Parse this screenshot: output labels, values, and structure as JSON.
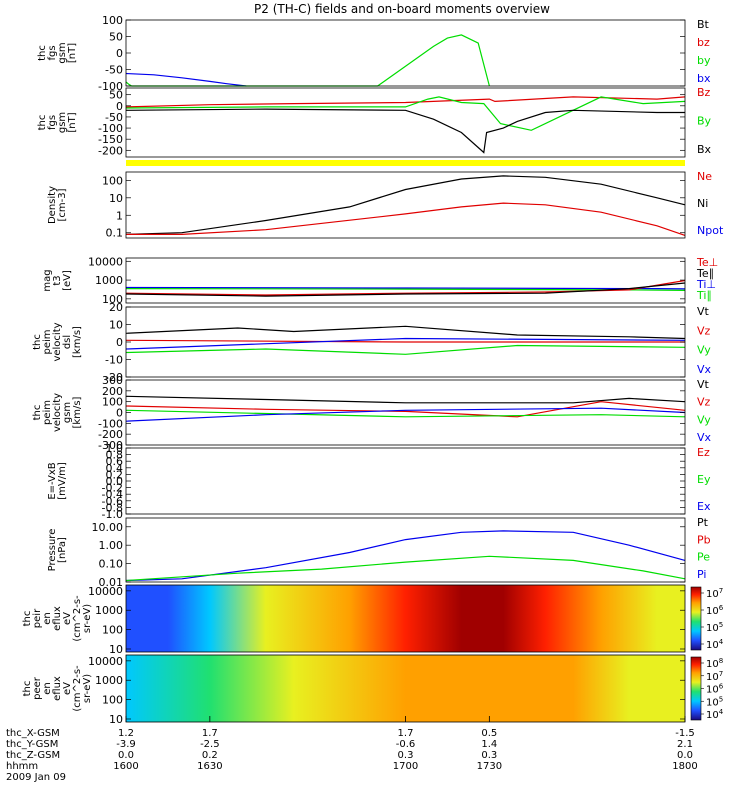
{
  "title": "P2 (TH-C) fields and on-board moments overview",
  "colors": {
    "black": "#000000",
    "red": "#e00000",
    "green": "#00dd00",
    "blue": "#0000ee",
    "yellow": "#ffff00"
  },
  "chart_data": [
    {
      "id": "p1",
      "type": "line",
      "ylabel": [
        "thc",
        "fgs",
        "gsm",
        "[nT]"
      ],
      "ylim": [
        -100,
        100
      ],
      "yticks": [
        100,
        50,
        0,
        -50,
        -100
      ],
      "legend": [
        {
          "name": "Bt",
          "color": "#000000"
        },
        {
          "name": "bz",
          "color": "#e00000"
        },
        {
          "name": "by",
          "color": "#00dd00"
        },
        {
          "name": "bx",
          "color": "#0000ee"
        }
      ],
      "series": [
        {
          "name": "bx",
          "color": "#0000ee",
          "x": [
            1600,
            1610,
            1620,
            1630,
            1636,
            1643
          ],
          "y": [
            -62,
            -66,
            -75,
            -86,
            -93,
            -100
          ]
        },
        {
          "name": "by",
          "color": "#00dd00",
          "x": [
            1600,
            1601,
            1602,
            1690,
            1700,
            1710,
            1715,
            1720,
            1726,
            1730
          ],
          "y": [
            -88,
            -95,
            -100,
            -100,
            -40,
            20,
            45,
            55,
            30,
            -100
          ]
        }
      ]
    },
    {
      "id": "p2",
      "type": "line",
      "ylabel": [
        "thc",
        "fgs",
        "gsm",
        "[nT]"
      ],
      "ylim": [
        -230,
        80
      ],
      "yticks": [
        50,
        0,
        -50,
        -100,
        -150,
        -200
      ],
      "legend": [
        {
          "name": "Bz",
          "color": "#e00000"
        },
        {
          "name": "By",
          "color": "#00dd00"
        },
        {
          "name": "Bx",
          "color": "#000000"
        }
      ],
      "series": [
        {
          "name": "Bz",
          "color": "#e00000",
          "x": [
            1600,
            1630,
            1660,
            1700,
            1730,
            1732,
            1760,
            1790,
            1800
          ],
          "y": [
            -5,
            5,
            10,
            15,
            30,
            20,
            40,
            30,
            40
          ]
        },
        {
          "name": "By",
          "color": "#00dd00",
          "x": [
            1600,
            1650,
            1700,
            1708,
            1712,
            1720,
            1728,
            1734,
            1745,
            1770,
            1785,
            1800
          ],
          "y": [
            -10,
            -5,
            -5,
            30,
            40,
            15,
            10,
            -80,
            -110,
            40,
            10,
            20
          ]
        },
        {
          "name": "Bx",
          "color": "#000000",
          "x": [
            1600,
            1650,
            1700,
            1710,
            1720,
            1728,
            1729,
            1735,
            1740,
            1750,
            1760,
            1790,
            1800
          ],
          "y": [
            -20,
            -15,
            -20,
            -60,
            -120,
            -210,
            -120,
            -100,
            -70,
            -30,
            -20,
            -30,
            -30
          ]
        }
      ]
    },
    {
      "id": "p3",
      "type": "line",
      "ylabel": [
        "Density",
        "[cm-3]"
      ],
      "yscale": "log",
      "ylim": [
        0.05,
        300
      ],
      "yticks": [
        "100",
        "10",
        "1",
        "0.1"
      ],
      "legend": [
        {
          "name": "Ne",
          "color": "#e00000"
        },
        {
          "name": "Ni",
          "color": "#000000"
        },
        {
          "name": "Npot",
          "color": "#0000ee"
        }
      ],
      "series": [
        {
          "name": "Ni",
          "color": "#000000",
          "x": [
            1600,
            1620,
            1650,
            1680,
            1700,
            1720,
            1735,
            1750,
            1770,
            1790,
            1800
          ],
          "y": [
            0.08,
            0.1,
            0.5,
            3,
            30,
            120,
            180,
            150,
            60,
            10,
            4
          ]
        },
        {
          "name": "Ne",
          "color": "#e00000",
          "x": [
            1600,
            1620,
            1650,
            1700,
            1720,
            1735,
            1750,
            1770,
            1790,
            1800
          ],
          "y": [
            0.08,
            0.08,
            0.15,
            1.2,
            3,
            5,
            4,
            1.5,
            0.25,
            0.07
          ]
        }
      ]
    },
    {
      "id": "p4",
      "type": "line",
      "ylabel": [
        "mag",
        "t3",
        "[eV]"
      ],
      "yscale": "log",
      "ylim": [
        60,
        15000
      ],
      "yticks": [
        "10000",
        "1000",
        "100"
      ],
      "legend": [
        {
          "name": "Te⊥",
          "color": "#e00000"
        },
        {
          "name": "Te∥",
          "color": "#000000"
        },
        {
          "name": "Ti⊥",
          "color": "#0000ee"
        },
        {
          "name": "Ti∥",
          "color": "#00dd00"
        }
      ],
      "series": [
        {
          "name": "Ti⊥",
          "color": "#0000ee",
          "x": [
            1600,
            1700,
            1790,
            1800
          ],
          "y": [
            400,
            380,
            350,
            340
          ]
        },
        {
          "name": "Ti∥",
          "color": "#00dd00",
          "x": [
            1600,
            1700,
            1780,
            1800
          ],
          "y": [
            350,
            330,
            300,
            280
          ]
        },
        {
          "name": "Te⊥",
          "color": "#e00000",
          "x": [
            1600,
            1650,
            1700,
            1750,
            1780,
            1800
          ],
          "y": [
            200,
            160,
            200,
            230,
            300,
            950
          ]
        },
        {
          "name": "Te∥",
          "color": "#000000",
          "x": [
            1600,
            1650,
            1700,
            1750,
            1780,
            1800
          ],
          "y": [
            180,
            140,
            180,
            200,
            350,
            700
          ]
        }
      ]
    },
    {
      "id": "p5",
      "type": "line",
      "ylabel": [
        "thc",
        "peim",
        "velocity",
        "dsl",
        "[km/s]"
      ],
      "ylim": [
        -20,
        20
      ],
      "yticks": [
        20,
        10,
        0,
        -10,
        -20
      ],
      "legend": [
        {
          "name": "Vt",
          "color": "#000000"
        },
        {
          "name": "Vz",
          "color": "#e00000"
        },
        {
          "name": "Vy",
          "color": "#00dd00"
        },
        {
          "name": "Vx",
          "color": "#0000ee"
        }
      ],
      "series": [
        {
          "name": "Vt",
          "color": "#000000",
          "x": [
            1600,
            1640,
            1660,
            1700,
            1740,
            1780,
            1800
          ],
          "y": [
            5,
            8,
            6,
            9,
            4,
            3,
            2
          ]
        },
        {
          "name": "Vz",
          "color": "#e00000",
          "x": [
            1600,
            1700,
            1800
          ],
          "y": [
            1,
            0,
            0
          ]
        },
        {
          "name": "Vy",
          "color": "#00dd00",
          "x": [
            1600,
            1650,
            1700,
            1740,
            1800
          ],
          "y": [
            -6,
            -4,
            -7,
            -2,
            -3
          ]
        },
        {
          "name": "Vx",
          "color": "#0000ee",
          "x": [
            1600,
            1700,
            1800
          ],
          "y": [
            -4,
            2,
            1
          ]
        }
      ]
    },
    {
      "id": "p6",
      "type": "line",
      "ylabel": [
        "thc",
        "peim",
        "velocity",
        "gsm",
        "[km/s]"
      ],
      "ylim": [
        -300,
        300
      ],
      "yticks": [
        300,
        200,
        100,
        0,
        -100,
        -200,
        -300
      ],
      "legend": [
        {
          "name": "Vt",
          "color": "#000000"
        },
        {
          "name": "Vz",
          "color": "#e00000"
        },
        {
          "name": "Vy",
          "color": "#00dd00"
        },
        {
          "name": "Vx",
          "color": "#0000ee"
        }
      ],
      "series": [
        {
          "name": "Vt",
          "color": "#000000",
          "x": [
            1600,
            1650,
            1700,
            1760,
            1780,
            1800
          ],
          "y": [
            150,
            120,
            90,
            90,
            130,
            100
          ]
        },
        {
          "name": "Vz",
          "color": "#e00000",
          "x": [
            1600,
            1650,
            1700,
            1740,
            1770,
            1800
          ],
          "y": [
            60,
            30,
            10,
            -40,
            100,
            20
          ]
        },
        {
          "name": "Vy",
          "color": "#00dd00",
          "x": [
            1600,
            1700,
            1770,
            1800
          ],
          "y": [
            20,
            -40,
            -20,
            -40
          ]
        },
        {
          "name": "Vx",
          "color": "#0000ee",
          "x": [
            1600,
            1650,
            1700,
            1770,
            1800
          ],
          "y": [
            -80,
            -20,
            20,
            40,
            0
          ]
        }
      ]
    },
    {
      "id": "p7",
      "type": "line",
      "ylabel": [
        "E=-VxB",
        "[mV/m]"
      ],
      "ylim": [
        -1,
        1
      ],
      "yticks": [
        "1.0",
        "0.8",
        "0.6",
        "0.4",
        "0.2",
        "0.0",
        "-0.2",
        "-0.4",
        "-0.6",
        "-0.8",
        "-1.0"
      ],
      "legend": [
        {
          "name": "Ez",
          "color": "#e00000"
        },
        {
          "name": "Ey",
          "color": "#00dd00"
        },
        {
          "name": "Ex",
          "color": "#0000ee"
        }
      ],
      "series": []
    },
    {
      "id": "p8",
      "type": "line",
      "ylabel": [
        "Pressure",
        "[nPa]"
      ],
      "yscale": "log",
      "ylim": [
        0.01,
        30
      ],
      "yticks": [
        "10.00",
        "1.00",
        "0.10",
        "0.01"
      ],
      "legend": [
        {
          "name": "Pt",
          "color": "#000000"
        },
        {
          "name": "Pb",
          "color": "#e00000"
        },
        {
          "name": "Pe",
          "color": "#00dd00"
        },
        {
          "name": "Pi",
          "color": "#0000ee"
        }
      ],
      "series": [
        {
          "name": "Pi",
          "color": "#0000ee",
          "x": [
            1600,
            1620,
            1650,
            1680,
            1700,
            1720,
            1735,
            1760,
            1780,
            1800
          ],
          "y": [
            0.012,
            0.015,
            0.06,
            0.4,
            2,
            5,
            6,
            5,
            1,
            0.15
          ]
        },
        {
          "name": "Pe",
          "color": "#00dd00",
          "x": [
            1600,
            1640,
            1670,
            1700,
            1730,
            1760,
            1785,
            1800
          ],
          "y": [
            0.012,
            0.03,
            0.05,
            0.12,
            0.25,
            0.15,
            0.04,
            0.015
          ]
        }
      ]
    },
    {
      "id": "p9",
      "type": "heatmap",
      "ylabel": [
        "thc",
        "peir",
        "en",
        "eflux",
        "eV",
        "(cm^2-s-",
        "sr-eV)"
      ],
      "yscale": "log",
      "ylim": [
        7,
        20000
      ],
      "yticks": [
        "10000",
        "1000",
        "100",
        "10"
      ],
      "colorbar": {
        "ticks": [
          "10^7",
          "10^6",
          "10^5",
          "10^4"
        ]
      },
      "x": [
        1600,
        1615,
        1630,
        1650,
        1680,
        1700,
        1720,
        1735,
        1750,
        1770,
        1790,
        1800
      ],
      "intensity_level": [
        0.12,
        0.15,
        0.3,
        0.5,
        0.7,
        0.85,
        0.95,
        0.95,
        0.85,
        0.7,
        0.6,
        0.55
      ]
    },
    {
      "id": "p10",
      "type": "heatmap",
      "ylabel": [
        "thc",
        "peer",
        "en",
        "eflux",
        "eV",
        "(cm^2-s-",
        "sr-eV)"
      ],
      "yscale": "log",
      "ylim": [
        7,
        20000
      ],
      "yticks": [
        "10000",
        "1000",
        "100",
        "10"
      ],
      "colorbar": {
        "ticks": [
          "10^8",
          "10^7",
          "10^6",
          "10^5",
          "10^4"
        ]
      },
      "x": [
        1600,
        1630,
        1660,
        1700,
        1720,
        1740,
        1760,
        1780,
        1800
      ],
      "intensity_level": [
        0.35,
        0.4,
        0.55,
        0.65,
        0.75,
        0.75,
        0.7,
        0.6,
        0.55
      ]
    }
  ],
  "axis": {
    "rows": [
      {
        "label": "thc_X-GSM",
        "values": [
          "1.2",
          "1.7",
          "1.7",
          "0.5",
          "-1.5"
        ]
      },
      {
        "label": "thc_Y-GSM",
        "values": [
          "-3.9",
          "-2.5",
          "-0.6",
          "1.4",
          "2.1"
        ]
      },
      {
        "label": "thc_Z-GSM",
        "values": [
          "0.0",
          "0.2",
          "0.3",
          "0.3",
          "0.0"
        ]
      },
      {
        "label": "hhmm",
        "values": [
          "1600",
          "1630",
          "1700",
          "1730",
          "1800"
        ]
      }
    ],
    "date": "2009 Jan 09"
  }
}
